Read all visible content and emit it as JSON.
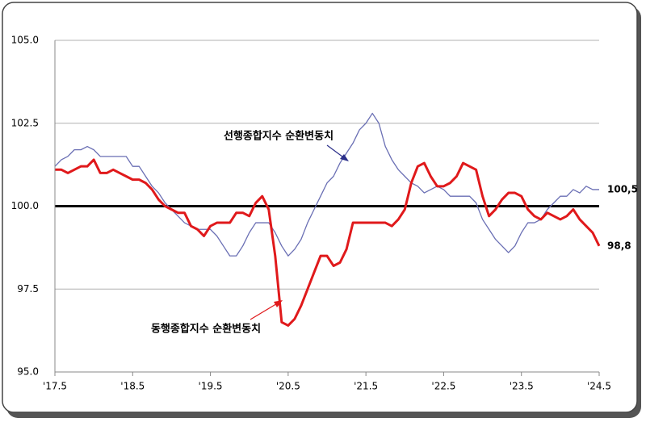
{
  "chart_data": {
    "type": "line",
    "categories": [
      "'17.5",
      null,
      null,
      null,
      null,
      null,
      null,
      null,
      null,
      null,
      null,
      null,
      "'18.5",
      null,
      null,
      null,
      null,
      null,
      null,
      null,
      null,
      null,
      null,
      null,
      "'19.5",
      null,
      null,
      null,
      null,
      null,
      null,
      null,
      null,
      null,
      null,
      null,
      "'20.5",
      null,
      null,
      null,
      null,
      null,
      null,
      null,
      null,
      null,
      null,
      null,
      "'21.5",
      null,
      null,
      null,
      null,
      null,
      null,
      null,
      null,
      null,
      null,
      null,
      "'22.5",
      null,
      null,
      null,
      null,
      null,
      null,
      null,
      null,
      null,
      null,
      null,
      "'23.5",
      null,
      null,
      null,
      null,
      null,
      null,
      null,
      null,
      null,
      null,
      null,
      "'24.5"
    ],
    "series": [
      {
        "name": "선행종합지수 순환변동치",
        "color": "#6a6fb4",
        "width": 1.3,
        "values": [
          101.2,
          101.4,
          101.5,
          101.7,
          101.7,
          101.8,
          101.7,
          101.5,
          101.5,
          101.5,
          101.5,
          101.5,
          101.2,
          101.2,
          100.9,
          100.6,
          100.4,
          100.1,
          99.9,
          99.7,
          99.5,
          99.4,
          99.3,
          99.3,
          99.3,
          99.1,
          98.8,
          98.5,
          98.5,
          98.8,
          99.2,
          99.5,
          99.5,
          99.5,
          99.2,
          98.8,
          98.5,
          98.7,
          99.0,
          99.5,
          99.9,
          100.3,
          100.7,
          100.9,
          101.3,
          101.6,
          101.9,
          102.3,
          102.5,
          102.8,
          102.5,
          101.8,
          101.4,
          101.1,
          100.9,
          100.7,
          100.6,
          100.4,
          100.5,
          100.6,
          100.5,
          100.3,
          100.3,
          100.3,
          100.3,
          100.1,
          99.6,
          99.3,
          99.0,
          98.8,
          98.6,
          98.8,
          99.2,
          99.5,
          99.5,
          99.6,
          99.9,
          100.1,
          100.3,
          100.3,
          100.5,
          100.4,
          100.6,
          100.5,
          100.5
        ],
        "value_labels": [
          null,
          null,
          null,
          null,
          null,
          null,
          null,
          null,
          null,
          null,
          null,
          null,
          null,
          null,
          null,
          null,
          null,
          null,
          null,
          null,
          null,
          null,
          null,
          null,
          null,
          null,
          null,
          null,
          null,
          null,
          null,
          null,
          null,
          null,
          null,
          null,
          null,
          null,
          null,
          null,
          null,
          null,
          null,
          null,
          null,
          null,
          null,
          null,
          null,
          null,
          null,
          null,
          null,
          null,
          null,
          null,
          null,
          null,
          null,
          null,
          null,
          null,
          null,
          null,
          null,
          null,
          null,
          null,
          null,
          null,
          null,
          null,
          null,
          null,
          null,
          null,
          null,
          null,
          null,
          null,
          null,
          null,
          null,
          null,
          "100,5"
        ]
      },
      {
        "name": "동행종합지수 순환변동치",
        "color": "#e0191b",
        "width": 3,
        "values": [
          101.1,
          101.1,
          101.0,
          101.1,
          101.2,
          101.2,
          101.4,
          101.0,
          101.0,
          101.1,
          101.0,
          100.9,
          100.8,
          100.8,
          100.7,
          100.5,
          100.2,
          100.0,
          99.9,
          99.8,
          99.8,
          99.4,
          99.3,
          99.1,
          99.4,
          99.5,
          99.5,
          99.5,
          99.8,
          99.8,
          99.7,
          100.1,
          100.3,
          99.9,
          98.5,
          96.5,
          96.4,
          96.6,
          97.0,
          97.5,
          98.0,
          98.5,
          98.5,
          98.2,
          98.3,
          98.7,
          99.5,
          99.5,
          99.5,
          99.5,
          99.5,
          99.5,
          99.4,
          99.6,
          99.9,
          100.7,
          101.2,
          101.3,
          100.9,
          100.6,
          100.6,
          100.7,
          100.9,
          101.3,
          101.2,
          101.1,
          100.3,
          99.7,
          99.9,
          100.2,
          100.4,
          100.4,
          100.3,
          99.9,
          99.7,
          99.6,
          99.8,
          99.7,
          99.6,
          99.7,
          99.9,
          99.6,
          99.4,
          99.2,
          98.8
        ],
        "value_labels": [
          null,
          null,
          null,
          null,
          null,
          null,
          null,
          null,
          null,
          null,
          null,
          null,
          null,
          null,
          null,
          null,
          null,
          null,
          null,
          null,
          null,
          null,
          null,
          null,
          null,
          null,
          null,
          null,
          null,
          null,
          null,
          null,
          null,
          null,
          null,
          null,
          null,
          null,
          null,
          null,
          null,
          null,
          null,
          null,
          null,
          null,
          null,
          null,
          null,
          null,
          null,
          null,
          null,
          null,
          null,
          null,
          null,
          null,
          null,
          null,
          null,
          null,
          null,
          null,
          null,
          null,
          null,
          null,
          null,
          null,
          null,
          null,
          null,
          null,
          null,
          null,
          null,
          null,
          null,
          null,
          null,
          null,
          null,
          null,
          "98,8"
        ]
      }
    ],
    "ylim": [
      95,
      105
    ],
    "yticks": [
      {
        "value": 95,
        "label": "95.0"
      },
      {
        "value": 97.5,
        "label": "97.5"
      },
      {
        "value": 100,
        "label": "100.0"
      },
      {
        "value": 102.5,
        "label": "102.5"
      },
      {
        "value": 105,
        "label": "105.0"
      }
    ],
    "grid": true,
    "reference_line": 100
  }
}
